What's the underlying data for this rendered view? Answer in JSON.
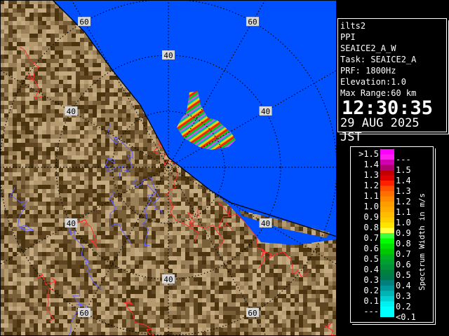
{
  "map": {
    "range_ring_labels": [
      {
        "text": "60",
        "ring_km": 60,
        "bearing_deg": 330
      },
      {
        "text": "60",
        "ring_km": 60,
        "bearing_deg": 30
      },
      {
        "text": "40",
        "ring_km": 40,
        "bearing_deg": 0
      },
      {
        "text": "40",
        "ring_km": 40,
        "bearing_deg": 60
      },
      {
        "text": "40",
        "ring_km": 40,
        "bearing_deg": 300
      },
      {
        "text": "40",
        "ring_km": 40,
        "bearing_deg": 240
      },
      {
        "text": "40",
        "ring_km": 40,
        "bearing_deg": 120
      },
      {
        "text": "40",
        "ring_km": 40,
        "bearing_deg": 180
      },
      {
        "text": "60",
        "ring_km": 60,
        "bearing_deg": 210
      },
      {
        "text": "60",
        "ring_km": 60,
        "bearing_deg": 150
      }
    ],
    "colors": {
      "sea": "#0050ff",
      "land_dark": "#4a3410",
      "land_light": "#b49a6e",
      "contour_red": "#ff3030",
      "contour_blue": "#6060ff"
    }
  },
  "info": {
    "radar": "ilts2",
    "scan_type": "PPI",
    "product": "SEAICE2_A_W",
    "task": "Task: SEAICE2_A",
    "prf": "PRF: 1800Hz",
    "elevation": "Elevation:1.0",
    "max_range": "Max Range:60 km",
    "time": "12:30:35",
    "date": "29 AUG 2025 JST"
  },
  "legend": {
    "title": "Spectrum Width in m/s",
    "rows": [
      {
        "lo": ">1.5",
        "hi": "---",
        "colors": [
          "#ff00ff",
          "#ff20f0"
        ]
      },
      {
        "lo": "1.4",
        "hi": "1.5",
        "colors": [
          "#d000b0",
          "#b00070"
        ]
      },
      {
        "lo": "1.3",
        "hi": "1.4",
        "colors": [
          "#c00000",
          "#e00000"
        ]
      },
      {
        "lo": "1.2",
        "hi": "1.3",
        "colors": [
          "#ff2000",
          "#ff5000"
        ]
      },
      {
        "lo": "1.1",
        "hi": "1.2",
        "colors": [
          "#ff7000",
          "#ff8800"
        ]
      },
      {
        "lo": "1.0",
        "hi": "1.1",
        "colors": [
          "#ff9c00",
          "#ffac00"
        ]
      },
      {
        "lo": "0.9",
        "hi": "1.0",
        "colors": [
          "#ffbc00",
          "#ffcc00"
        ]
      },
      {
        "lo": "0.8",
        "hi": "0.9",
        "colors": [
          "#ffe400",
          "#ffff40"
        ]
      },
      {
        "lo": "0.7",
        "hi": "0.8",
        "colors": [
          "#40ff40",
          "#00ff00"
        ]
      },
      {
        "lo": "0.6",
        "hi": "0.7",
        "colors": [
          "#00e000",
          "#00c800"
        ]
      },
      {
        "lo": "0.5",
        "hi": "0.6",
        "colors": [
          "#00b020",
          "#00a030"
        ]
      },
      {
        "lo": "0.4",
        "hi": "0.5",
        "colors": [
          "#009038",
          "#008040"
        ]
      },
      {
        "lo": "0.3",
        "hi": "0.4",
        "colors": [
          "#007850",
          "#008080"
        ]
      },
      {
        "lo": "0.2",
        "hi": "0.3",
        "colors": [
          "#009898",
          "#00b4b4"
        ]
      },
      {
        "lo": "0.1",
        "hi": "0.2",
        "colors": [
          "#00d0d0",
          "#00f0f0"
        ]
      },
      {
        "lo": "---",
        "hi": "<0.1",
        "colors": [
          "#00ffff",
          "#00ffff"
        ]
      }
    ]
  }
}
